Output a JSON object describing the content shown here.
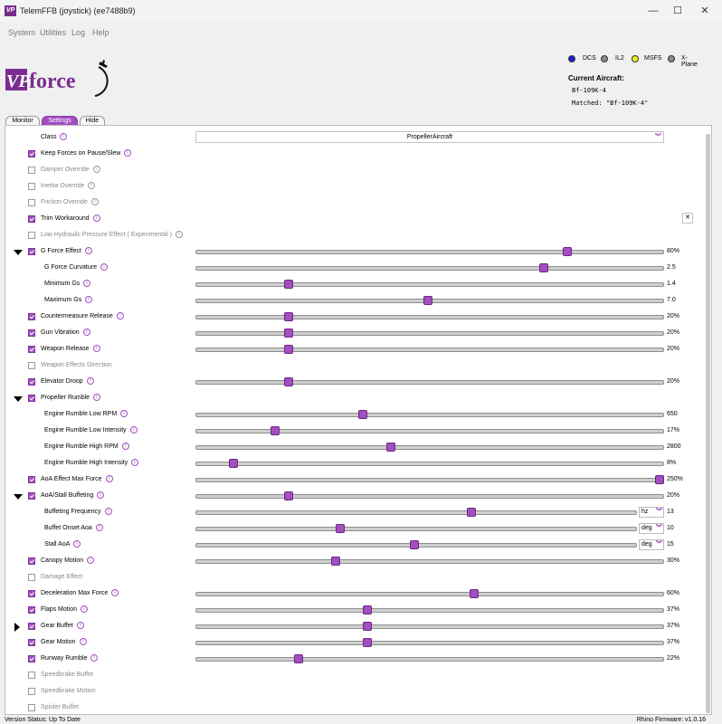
{
  "window": {
    "title": "TelemFFB (joystick) (ee7488b9)",
    "controls": [
      "—",
      "☐",
      "✕"
    ]
  },
  "menu": [
    "System",
    "Utilities",
    "Log",
    "Help"
  ],
  "logo_text": "VPforce",
  "logo_lettering": {
    "vp": "VP",
    "force": "force"
  },
  "sims": [
    {
      "name": "DCS",
      "color": "#1a1ad6"
    },
    {
      "name": "IL2",
      "color": "#8a8a8a"
    },
    {
      "name": "MSFS",
      "color": "#ecec1a"
    },
    {
      "name": "X-Plane",
      "color": "#8a8a8a"
    }
  ],
  "aircraft": {
    "current_label": "Current Aircraft:",
    "current_value": "Bf-109K-4",
    "matched": "Matched: \"Bf-109K-4\""
  },
  "tabs": [
    "Monitor",
    "Settings",
    "Hide"
  ],
  "class_row": {
    "label": "Class",
    "value": "PropellerAircraft"
  },
  "rows": [
    {
      "label": "Keep Forces on Pause/Slew",
      "checked": true,
      "dim": false
    },
    {
      "label": "Damper Override",
      "checked": false,
      "dim": true
    },
    {
      "label": "Inertia Override",
      "checked": false,
      "dim": true
    },
    {
      "label": "Friction Override",
      "checked": false,
      "dim": true
    },
    {
      "label": "Trim Workaround",
      "checked": true,
      "dim": false
    },
    {
      "label": "Low Hydraulic Pressure Effect ( Experimental )",
      "checked": false,
      "dim": true
    },
    {
      "label": "G Force Effect",
      "checked": true,
      "expand": "down",
      "slider": 0.8,
      "value": "80%"
    },
    {
      "label": "G Force Curvature",
      "sub": true,
      "slider": 0.75,
      "value": "2.5"
    },
    {
      "label": "Minimum Gs",
      "sub": true,
      "slider": 0.2,
      "value": "1.4"
    },
    {
      "label": "Maximum Gs",
      "sub": true,
      "slider": 0.5,
      "value": "7.0"
    },
    {
      "label": "Countermeasure Release",
      "checked": true,
      "slider": 0.2,
      "value": "20%"
    },
    {
      "label": "Gun Vibration",
      "checked": true,
      "slider": 0.2,
      "value": "20%"
    },
    {
      "label": "Weapon Release",
      "checked": true,
      "slider": 0.2,
      "value": "20%"
    },
    {
      "label": "Weapon Effects Direction",
      "checked": false,
      "dim": true,
      "noinfo": true
    },
    {
      "label": "Elevator Droop",
      "checked": true,
      "slider": 0.2,
      "value": "20%"
    },
    {
      "label": "Propeller Rumble",
      "checked": true,
      "expand": "down"
    },
    {
      "label": "Engine Rumble Low RPM",
      "sub": true,
      "slider": 0.36,
      "value": "650"
    },
    {
      "label": "Engine Rumble Low Intensity",
      "sub": true,
      "slider": 0.17,
      "value": "17%"
    },
    {
      "label": "Engine Rumble High RPM",
      "sub": true,
      "slider": 0.42,
      "value": "2800"
    },
    {
      "label": "Engine Rumble High Intensity",
      "sub": true,
      "slider": 0.08,
      "value": "8%"
    },
    {
      "label": "AoA Effect Max Force",
      "checked": true,
      "slider": 1.0,
      "value": "250%"
    },
    {
      "label": "AoA/Stall Buffeting",
      "checked": true,
      "expand": "down",
      "slider": 0.2,
      "value": "20%"
    },
    {
      "label": "Buffeting Frequency",
      "sub": true,
      "slider": 0.63,
      "unit": "hz",
      "value": "13"
    },
    {
      "label": "Buffet Onset Aoa",
      "sub": true,
      "slider": 0.33,
      "unit": "deg",
      "value": "10"
    },
    {
      "label": "Stall AoA",
      "sub": true,
      "slider": 0.5,
      "unit": "deg",
      "value": "15"
    },
    {
      "label": "Canopy Motion",
      "checked": true,
      "slider": 0.3,
      "value": "30%"
    },
    {
      "label": "Damage Effect",
      "checked": false,
      "dim": true,
      "noinfo": true
    },
    {
      "label": "Deceleration Max Force",
      "checked": true,
      "slider": 0.6,
      "value": "60%"
    },
    {
      "label": "Flaps Motion",
      "checked": true,
      "slider": 0.37,
      "value": "37%"
    },
    {
      "label": "Gear Buffet",
      "checked": true,
      "expand": "right",
      "slider": 0.37,
      "value": "37%"
    },
    {
      "label": "Gear Motion",
      "checked": true,
      "slider": 0.37,
      "value": "37%"
    },
    {
      "label": "Runway Rumble",
      "checked": true,
      "slider": 0.22,
      "value": "22%"
    },
    {
      "label": "Speedbrake Buffet",
      "checked": false,
      "dim": true,
      "noinfo": true
    },
    {
      "label": "Speedbrake Motion",
      "checked": false,
      "dim": true,
      "noinfo": true
    },
    {
      "label": "Spoiler Buffet",
      "checked": false,
      "dim": true,
      "noinfo": true
    }
  ],
  "status": {
    "left": "Version Status: Up To Date",
    "right": "Rhino Firmware: v1.0.16"
  }
}
